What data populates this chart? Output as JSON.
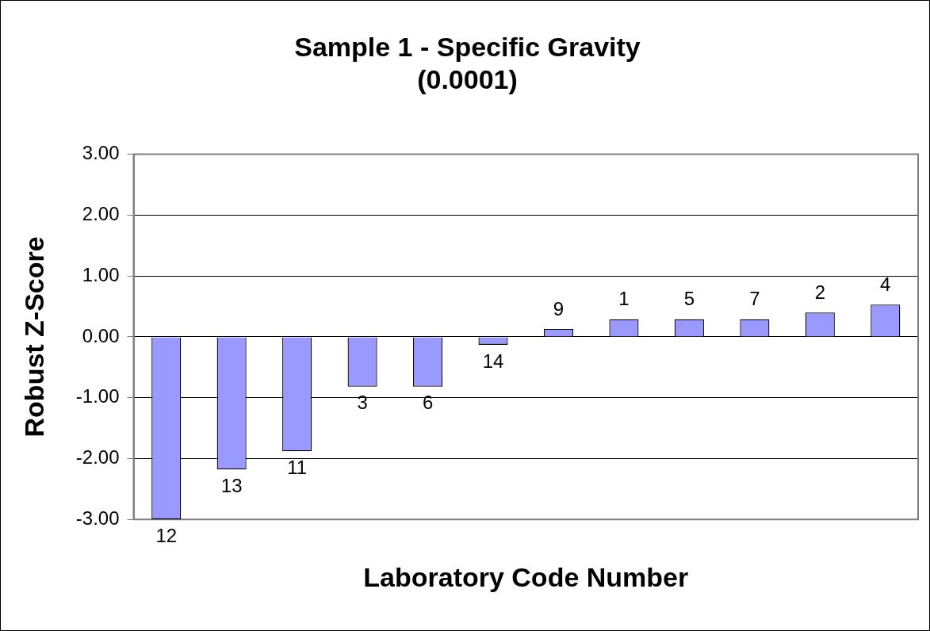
{
  "chart_data": {
    "type": "bar",
    "title": "Sample 1 - Specific Gravity\n(0.0001)",
    "xlabel": "Laboratory Code Number",
    "ylabel": "Robust Z-Score",
    "categories": [
      "12",
      "13",
      "11",
      "3",
      "6",
      "14",
      "9",
      "1",
      "5",
      "7",
      "2",
      "4"
    ],
    "values": [
      -3.0,
      -2.18,
      -1.88,
      -0.82,
      -0.82,
      -0.13,
      0.13,
      0.29,
      0.29,
      0.29,
      0.4,
      0.53
    ],
    "color": "#9999ff",
    "ylim": [
      -3,
      3
    ],
    "yticks": [
      {
        "value": -3,
        "label": "-3.00"
      },
      {
        "value": -2,
        "label": "-2.00"
      },
      {
        "value": -1,
        "label": "-1.00"
      },
      {
        "value": 0,
        "label": "0.00"
      },
      {
        "value": 1,
        "label": "1.00"
      },
      {
        "value": 2,
        "label": "2.00"
      },
      {
        "value": 3,
        "label": "3.00"
      }
    ],
    "grid": "y",
    "legend": false
  }
}
